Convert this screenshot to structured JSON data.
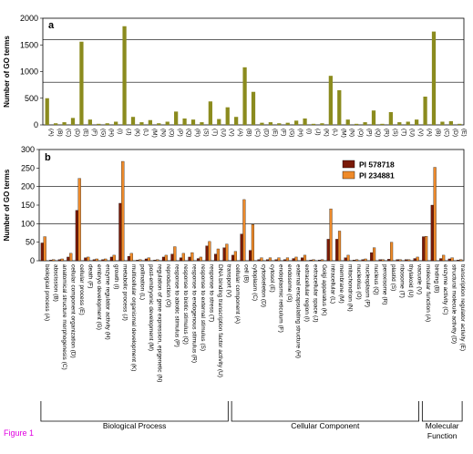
{
  "figure_label": "Figure 1",
  "chart_data": [
    {
      "type": "bar",
      "panel": "a",
      "ylabel": "Number of GO terms",
      "ylim": [
        0,
        2000
      ],
      "yticks": [
        0,
        500,
        1000,
        1500,
        2000
      ],
      "grid_lines": [
        800,
        1600
      ],
      "color": "#8b8b1e",
      "categories": [
        "(A)",
        "(B)",
        "(C)",
        "(D)",
        "(E)",
        "(F)",
        "(G)",
        "(H)",
        "(I)",
        "(J)",
        "(K)",
        "(L)",
        "(M)",
        "(N)",
        "(O)",
        "(P)",
        "(Q)",
        "(R)",
        "(S)",
        "(T)",
        "(U)",
        "(V)",
        "(A)",
        "(B)",
        "(C)",
        "(D)",
        "(E)",
        "(F)",
        "(G)",
        "(H)",
        "(I)",
        "(J)",
        "(K)",
        "(L)",
        "(M)",
        "(N)",
        "(O)",
        "(P)",
        "(Q)",
        "(R)",
        "(S)",
        "(T)",
        "(U)",
        "(V)",
        "(A)",
        "(B)",
        "(C)",
        "(D)",
        "(E)"
      ],
      "values": [
        500,
        30,
        50,
        130,
        1560,
        100,
        20,
        30,
        60,
        1850,
        150,
        50,
        90,
        30,
        60,
        250,
        120,
        100,
        50,
        440,
        110,
        330,
        150,
        1080,
        620,
        40,
        50,
        30,
        40,
        80,
        120,
        20,
        30,
        920,
        650,
        100,
        20,
        50,
        270,
        20,
        240,
        50,
        60,
        100,
        530,
        1750,
        60,
        70,
        20
      ]
    },
    {
      "type": "bar",
      "panel": "b",
      "ylabel": "Number of GO terms",
      "ylim": [
        0,
        300
      ],
      "yticks": [
        0,
        50,
        100,
        150,
        200,
        250,
        300
      ],
      "grid_lines": [
        100,
        200
      ],
      "categories": [
        "biological process (A)",
        "abscission (B)",
        "anatomical structure morphogenesis (C)",
        "cellular component organization (D)",
        "cellular process (E)",
        "death (F)",
        "embryo development (G)",
        "enzyme regulator activity (H)",
        "growth (I)",
        "metabolic process (J)",
        "multicellular organismal development (K)",
        "pollination (L)",
        "post-embryonic development (M)",
        "regulation of gene expression, epigenetic (N)",
        "reproduction (O)",
        "response to abiotic stimulus (P)",
        "response to biotic stimulus (Q)",
        "response to endogenous stimulus (R)",
        "response to external stimulus (S)",
        "response to stress (T)",
        "DNA binding transcription factor activity (U)",
        "transport (V)",
        "cellular component (A)",
        "cell (B)",
        "cytoplasm (C)",
        "cytoskeleton (D)",
        "cytosol (E)",
        "endoplasmic reticulum (F)",
        "endosome (G)",
        "external encapsulating structure (H)",
        "extracellular region (I)",
        "extracellular space (J)",
        "Golgi apparatus (K)",
        "intracellular (L)",
        "membrane (M)",
        "mitochondrion (N)",
        "nucleolus (O)",
        "nucleoplasm (P)",
        "nucleus (Q)",
        "peroxisome (R)",
        "plastid (S)",
        "ribosome (T)",
        "thylakoid (U)",
        "vacuole (V)",
        "molecular function (A)",
        "binding (B)",
        "enzyme activity (C)",
        "structural molecule activity (D)",
        "transcription regulator activity (E)"
      ],
      "series": [
        {
          "name": "PI 578718",
          "color": "#7a1a08",
          "values": [
            48,
            2,
            3,
            10,
            136,
            8,
            3,
            3,
            10,
            155,
            12,
            2,
            5,
            2,
            10,
            18,
            8,
            10,
            6,
            40,
            18,
            35,
            15,
            72,
            28,
            3,
            3,
            3,
            3,
            6,
            8,
            2,
            2,
            58,
            58,
            8,
            2,
            3,
            22,
            3,
            4,
            3,
            3,
            6,
            65,
            150,
            6,
            5,
            2
          ]
        },
        {
          "name": "PI 234881",
          "color": "#ee8a2a",
          "values": [
            65,
            3,
            5,
            20,
            222,
            10,
            5,
            5,
            15,
            268,
            20,
            3,
            8,
            3,
            15,
            38,
            20,
            22,
            10,
            52,
            32,
            45,
            25,
            165,
            98,
            8,
            8,
            8,
            8,
            10,
            15,
            3,
            3,
            140,
            80,
            15,
            3,
            5,
            35,
            3,
            50,
            3,
            3,
            10,
            66,
            252,
            15,
            8,
            3
          ]
        }
      ],
      "legend_position": "top-right",
      "groups": [
        {
          "label": "Biological Process",
          "from": 0,
          "to": 21
        },
        {
          "label": "Cellular Component",
          "from": 22,
          "to": 43
        },
        {
          "label": "Molecular Function",
          "from": 44,
          "to": 48
        }
      ]
    }
  ]
}
